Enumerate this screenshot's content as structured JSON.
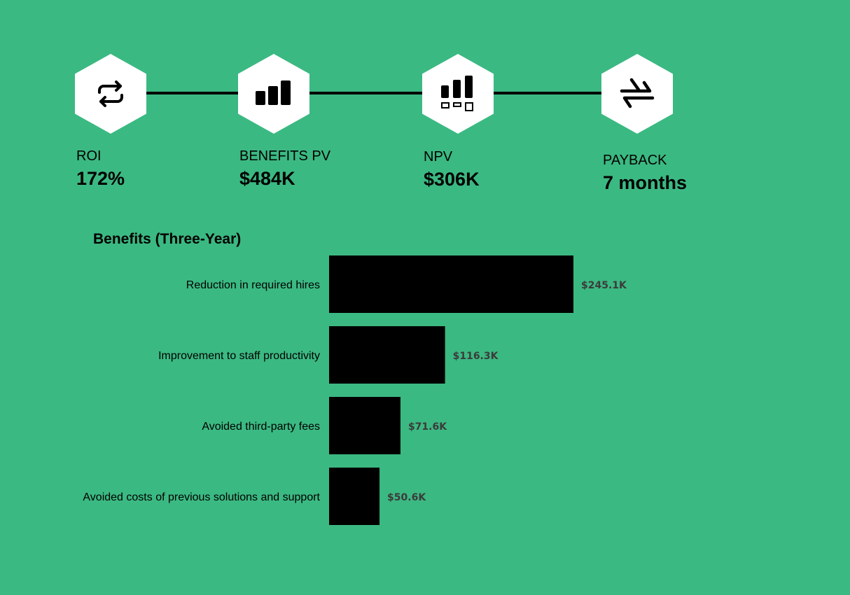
{
  "metrics": [
    {
      "label": "ROI",
      "value": "172%",
      "icon": "refresh-icon"
    },
    {
      "label": "BENEFITS PV",
      "value": "$484K",
      "icon": "bar-chart-icon"
    },
    {
      "label": "NPV",
      "value": "$306K",
      "icon": "bar-chart-boxes-icon"
    },
    {
      "label": "PAYBACK",
      "value": "7 months",
      "icon": "exchange-arrows-icon"
    }
  ],
  "colors": {
    "background": "#3bb982",
    "bars": "#000000",
    "hexagon": "#ffffff",
    "value_label": "#3b3b3b"
  },
  "chart_data": {
    "type": "bar",
    "orientation": "horizontal",
    "title": "Benefits (Three-Year)",
    "categories": [
      "Reduction in required hires",
      "Improvement to staff productivity",
      "Avoided third-party fees",
      "Avoided costs of previous solutions and support"
    ],
    "values": [
      245.1,
      116.3,
      71.6,
      50.6
    ],
    "value_labels": [
      "$245.1K",
      "$116.3K",
      "$71.6K",
      "$50.6K"
    ],
    "unit": "$K",
    "xlim": [
      0,
      245.1
    ],
    "grid": false,
    "legend": "none"
  }
}
